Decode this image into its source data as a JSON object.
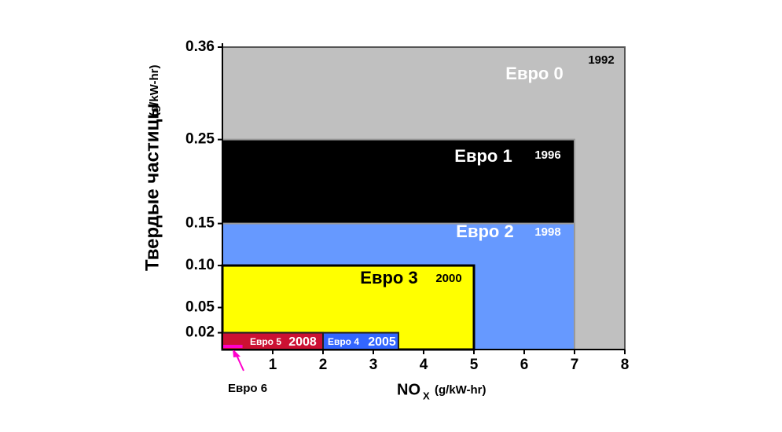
{
  "chart_data": {
    "type": "nested-rect",
    "x_label": "NO",
    "x_label_sub": "X",
    "x_label_unit": "(g/kW-hr)",
    "y_label": "Твердые частицы",
    "y_label_unit": "(g/kW-hr)",
    "xlim": [
      0,
      8
    ],
    "xticks": [
      1,
      2,
      3,
      4,
      5,
      6,
      7,
      8
    ],
    "ylim": [
      0,
      0.36
    ],
    "yticks": [
      0.36,
      0.25,
      0.15,
      {
        "value": 0.1,
        "label": "0.10"
      },
      0.05,
      0.02
    ],
    "series": [
      {
        "name": "Евро 0",
        "year": "1992",
        "color": "#c0c0c0",
        "x": 8,
        "y": 0.36
      },
      {
        "name": "Евро 1",
        "year": "1996",
        "color": "#000000",
        "x": 7,
        "y": 0.25
      },
      {
        "name": "Евро 2",
        "year": "1998",
        "color": "#6699ff",
        "x": 7,
        "y": 0.15
      },
      {
        "name": "Евро 3",
        "year": "2000",
        "color": "#ffff00",
        "x": 5,
        "y": 0.1
      },
      {
        "name": "Евро 4",
        "year": "2005",
        "color": "#3366ff",
        "x": 3.5,
        "y": 0.02
      },
      {
        "name": "Евро 5",
        "year": "2008",
        "color": "#cc1133",
        "x": 2,
        "y": 0.02
      },
      {
        "name": "Евро 6",
        "color": "#ff00cc",
        "x": 0.4,
        "y": 0.005
      }
    ]
  }
}
